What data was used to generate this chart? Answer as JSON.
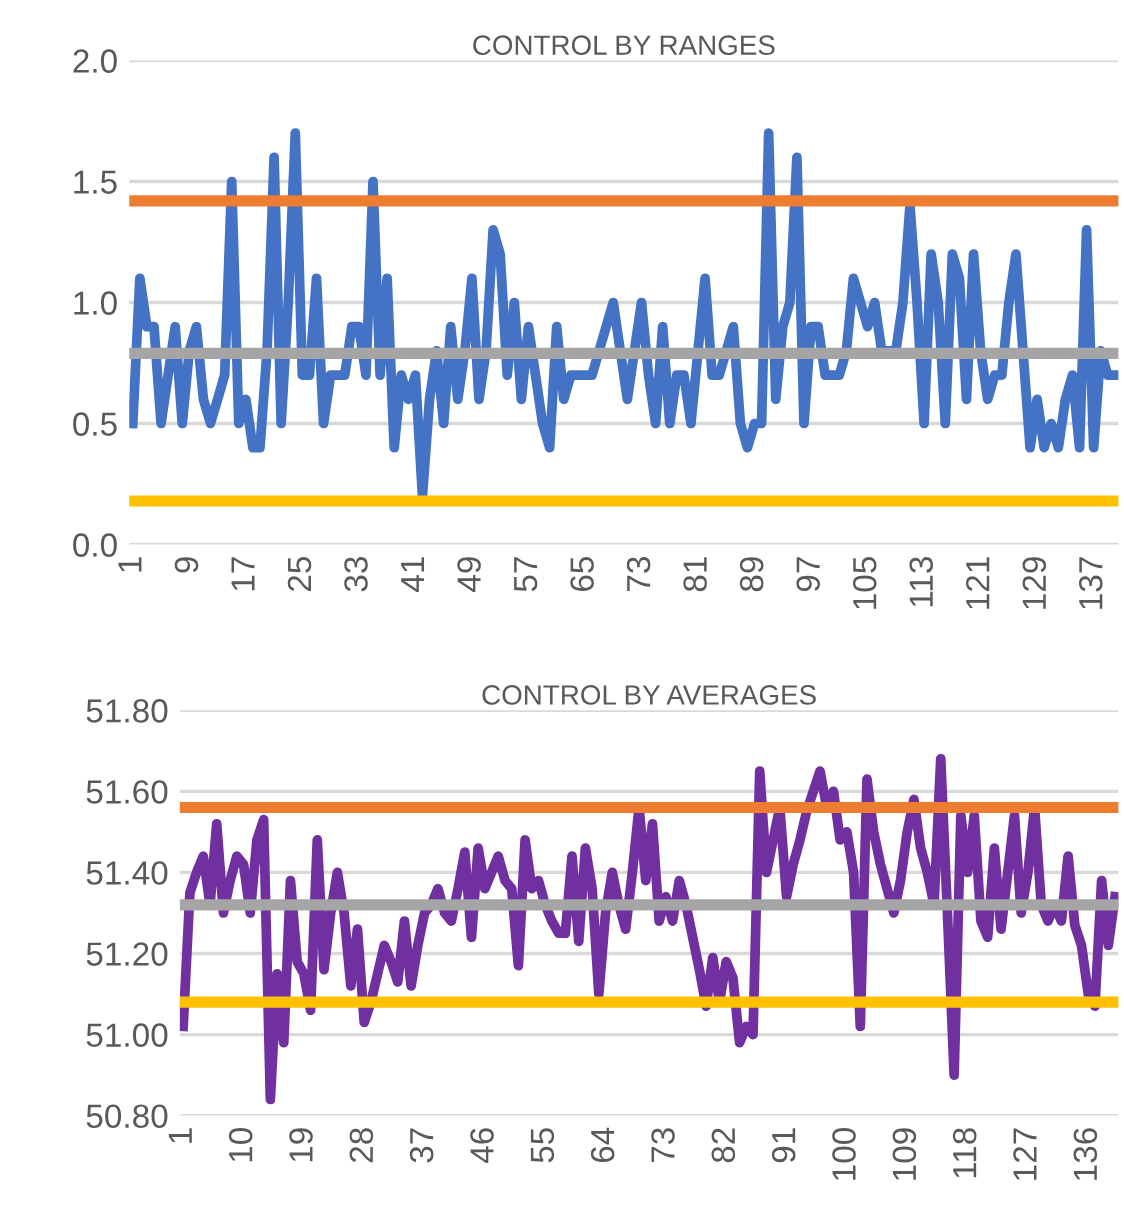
{
  "chart_data": [
    {
      "type": "line",
      "title": "CONTROL BY RANGES",
      "categories": [
        "1",
        null,
        null,
        null,
        null,
        null,
        null,
        null,
        "9",
        null,
        null,
        null,
        null,
        null,
        null,
        null,
        "17",
        null,
        null,
        null,
        null,
        null,
        null,
        null,
        "25",
        null,
        null,
        null,
        null,
        null,
        null,
        null,
        "33",
        null,
        null,
        null,
        null,
        null,
        null,
        null,
        "41",
        null,
        null,
        null,
        null,
        null,
        null,
        null,
        "49",
        null,
        null,
        null,
        null,
        null,
        null,
        null,
        "57",
        null,
        null,
        null,
        null,
        null,
        null,
        null,
        "65",
        null,
        null,
        null,
        null,
        null,
        null,
        null,
        "73",
        null,
        null,
        null,
        null,
        null,
        null,
        null,
        "81",
        null,
        null,
        null,
        null,
        null,
        null,
        null,
        "89",
        null,
        null,
        null,
        null,
        null,
        null,
        null,
        "97",
        null,
        null,
        null,
        null,
        null,
        null,
        null,
        "105",
        null,
        null,
        null,
        null,
        null,
        null,
        null,
        "113",
        null,
        null,
        null,
        null,
        null,
        null,
        null,
        "121",
        null,
        null,
        null,
        null,
        null,
        null,
        null,
        "129",
        null,
        null,
        null,
        null,
        null,
        null,
        null,
        "137",
        null,
        null,
        null
      ],
      "series": [
        {
          "color": "#4472c4",
          "values": [
            0.5,
            1.1,
            0.9,
            0.9,
            0.5,
            0.7,
            0.9,
            0.5,
            0.8,
            0.9,
            0.6,
            0.5,
            0.6,
            0.7,
            1.5,
            0.5,
            0.6,
            0.4,
            0.4,
            0.8,
            1.6,
            0.5,
            1.0,
            1.7,
            0.7,
            0.7,
            1.1,
            0.5,
            0.7,
            0.7,
            0.7,
            0.9,
            0.9,
            0.7,
            1.5,
            0.7,
            1.1,
            0.4,
            0.7,
            0.6,
            0.7,
            0.2,
            0.6,
            0.8,
            0.5,
            0.9,
            0.6,
            0.8,
            1.1,
            0.6,
            0.8,
            1.3,
            1.2,
            0.7,
            1.0,
            0.6,
            0.9,
            0.7,
            0.5,
            0.4,
            0.9,
            0.6,
            0.7,
            0.7,
            0.7,
            0.7,
            0.8,
            0.9,
            1.0,
            0.8,
            0.6,
            0.8,
            1.0,
            0.7,
            0.5,
            0.9,
            0.5,
            0.7,
            0.7,
            0.5,
            0.8,
            1.1,
            0.7,
            0.7,
            0.8,
            0.9,
            0.5,
            0.4,
            0.5,
            0.5,
            1.7,
            0.6,
            0.9,
            1.0,
            1.6,
            0.5,
            0.9,
            0.9,
            0.7,
            0.7,
            0.7,
            0.8,
            1.1,
            1.0,
            0.9,
            1.0,
            0.8,
            0.8,
            0.8,
            1.0,
            1.4,
            1.0,
            0.5,
            1.2,
            1.0,
            0.5,
            1.2,
            1.1,
            0.6,
            1.2,
            0.8,
            0.6,
            0.7,
            0.7,
            1.0,
            1.2,
            0.8,
            0.4,
            0.6,
            0.4,
            0.5,
            0.4,
            0.6,
            0.7,
            0.4,
            1.3,
            0.4,
            0.8,
            0.7,
            0.7
          ]
        }
      ],
      "ref_lines": [
        {
          "axis": "y",
          "value": 1.42,
          "color": "#ed7d31"
        },
        {
          "axis": "y",
          "value": 0.79,
          "color": "#a5a5a5"
        },
        {
          "axis": "y",
          "value": 0.18,
          "color": "#ffc000"
        }
      ],
      "ylim": [
        0,
        2
      ],
      "yticks": [
        {
          "value": 0,
          "label": "0.0"
        },
        {
          "value": 0.5,
          "label": "0.5"
        },
        {
          "value": 1,
          "label": "1.0"
        },
        {
          "value": 1.5,
          "label": "1.5"
        },
        {
          "value": 2,
          "label": "2.0"
        }
      ],
      "grid": "y",
      "marker": "none",
      "line_style": "solid",
      "legend": false
    },
    {
      "type": "line",
      "title": "CONTROL BY AVERAGES",
      "categories": [
        "1",
        null,
        null,
        null,
        null,
        null,
        null,
        null,
        null,
        "10",
        null,
        null,
        null,
        null,
        null,
        null,
        null,
        null,
        "19",
        null,
        null,
        null,
        null,
        null,
        null,
        null,
        null,
        "28",
        null,
        null,
        null,
        null,
        null,
        null,
        null,
        null,
        "37",
        null,
        null,
        null,
        null,
        null,
        null,
        null,
        null,
        "46",
        null,
        null,
        null,
        null,
        null,
        null,
        null,
        null,
        "55",
        null,
        null,
        null,
        null,
        null,
        null,
        null,
        null,
        "64",
        null,
        null,
        null,
        null,
        null,
        null,
        null,
        null,
        "73",
        null,
        null,
        null,
        null,
        null,
        null,
        null,
        null,
        "82",
        null,
        null,
        null,
        null,
        null,
        null,
        null,
        null,
        "91",
        null,
        null,
        null,
        null,
        null,
        null,
        null,
        null,
        "100",
        null,
        null,
        null,
        null,
        null,
        null,
        null,
        null,
        "109",
        null,
        null,
        null,
        null,
        null,
        null,
        null,
        null,
        "118",
        null,
        null,
        null,
        null,
        null,
        null,
        null,
        null,
        "127",
        null,
        null,
        null,
        null,
        null,
        null,
        null,
        null,
        "136",
        null,
        null,
        null,
        null
      ],
      "series": [
        {
          "color": "#7030a0",
          "values": [
            51.02,
            51.35,
            51.4,
            51.44,
            51.32,
            51.52,
            51.3,
            51.38,
            51.44,
            51.42,
            51.3,
            51.48,
            51.53,
            50.84,
            51.15,
            50.98,
            51.38,
            51.18,
            51.15,
            51.06,
            51.48,
            51.16,
            51.3,
            51.4,
            51.3,
            51.12,
            51.26,
            51.03,
            51.08,
            51.15,
            51.22,
            51.18,
            51.13,
            51.28,
            51.12,
            51.22,
            51.3,
            51.32,
            51.36,
            51.3,
            51.28,
            51.36,
            51.45,
            51.24,
            51.46,
            51.36,
            51.4,
            51.44,
            51.38,
            51.36,
            51.17,
            51.48,
            51.36,
            51.38,
            51.32,
            51.28,
            51.25,
            51.25,
            51.44,
            51.23,
            51.46,
            51.36,
            51.1,
            51.3,
            51.4,
            51.32,
            51.26,
            51.4,
            51.56,
            51.38,
            51.52,
            51.28,
            51.34,
            51.28,
            51.38,
            51.32,
            51.24,
            51.16,
            51.07,
            51.19,
            51.08,
            51.18,
            51.14,
            50.98,
            51.02,
            51.0,
            51.65,
            51.4,
            51.48,
            51.56,
            51.34,
            51.42,
            51.48,
            51.55,
            51.6,
            51.65,
            51.56,
            51.6,
            51.48,
            51.5,
            51.4,
            51.02,
            51.63,
            51.5,
            51.42,
            51.36,
            51.3,
            51.38,
            51.5,
            51.58,
            51.46,
            51.4,
            51.32,
            51.68,
            51.3,
            50.9,
            51.54,
            51.4,
            51.54,
            51.28,
            51.24,
            51.46,
            51.26,
            51.4,
            51.54,
            51.3,
            51.4,
            51.56,
            51.32,
            51.28,
            51.32,
            51.28,
            51.44,
            51.27,
            51.22,
            51.1,
            51.07,
            51.38,
            51.22,
            51.34
          ]
        }
      ],
      "ref_lines": [
        {
          "axis": "y",
          "value": 51.56,
          "color": "#ed7d31"
        },
        {
          "axis": "y",
          "value": 51.32,
          "color": "#a5a5a5"
        },
        {
          "axis": "y",
          "value": 51.08,
          "color": "#ffc000"
        }
      ],
      "ylim": [
        50.8,
        51.8
      ],
      "yticks": [
        {
          "value": 50.8,
          "label": "50.80"
        },
        {
          "value": 51.0,
          "label": "51.00"
        },
        {
          "value": 51.2,
          "label": "51.20"
        },
        {
          "value": 51.4,
          "label": "51.40"
        },
        {
          "value": 51.6,
          "label": "51.60"
        },
        {
          "value": 51.8,
          "label": "51.80"
        }
      ],
      "grid": "y",
      "marker": "none",
      "line_style": "solid",
      "legend": false
    }
  ]
}
